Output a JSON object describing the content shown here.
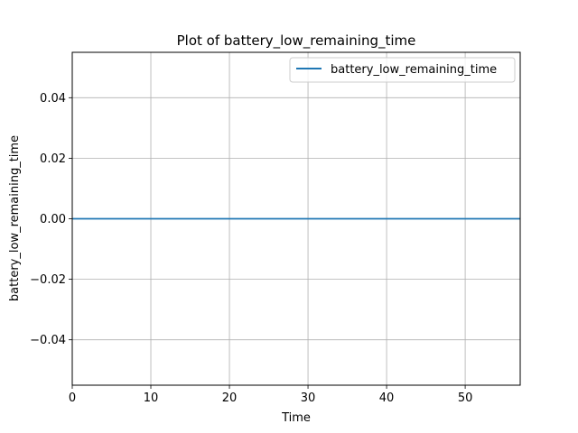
{
  "chart_data": {
    "type": "line",
    "title": "Plot of battery_low_remaining_time",
    "xlabel": "Time",
    "ylabel": "battery_low_remaining_time",
    "xlim": [
      0,
      57
    ],
    "ylim": [
      -0.055,
      0.055
    ],
    "x_ticks": [
      0,
      10,
      20,
      30,
      40,
      50
    ],
    "x_tick_labels": [
      "0",
      "10",
      "20",
      "30",
      "40",
      "50"
    ],
    "y_ticks": [
      -0.04,
      -0.02,
      0.0,
      0.02,
      0.04
    ],
    "y_tick_labels": [
      "−0.04",
      "−0.02",
      "0.00",
      "0.02",
      "0.04"
    ],
    "grid": true,
    "legend_position": "top-right",
    "series": [
      {
        "name": "battery_low_remaining_time",
        "color": "#1f77b4",
        "x": [
          0,
          57
        ],
        "y": [
          0,
          0
        ]
      }
    ]
  }
}
